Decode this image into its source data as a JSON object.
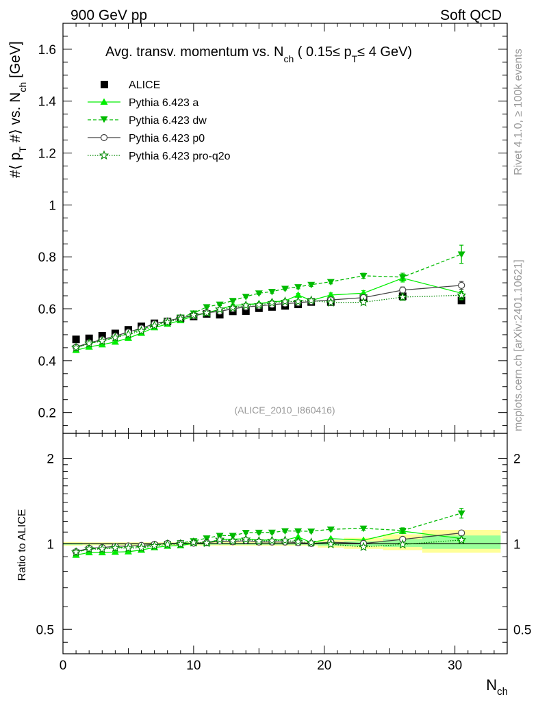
{
  "header": {
    "left": "900 GeV pp",
    "right": "Soft QCD"
  },
  "side_labels": {
    "rivet": "Rivet 4.1.0, ≥ 100k events",
    "mcplots": "mcplots.cern.ch [arXiv:2401.10621]"
  },
  "analysis_id": "(ALICE_2010_I860416)",
  "colors": {
    "alice": "#000000",
    "pythia_a": "#00ee00",
    "pythia_dw": "#00bb00",
    "pythia_p0": "#444444",
    "pythia_proq2o": "#008800",
    "band_yellow": "#ffff99",
    "band_green": "#99ff99"
  },
  "chart_data": [
    {
      "type": "scatter",
      "title": "Avg. transv. momentum vs. N_ch ( 0.15≤ p_T ≤ 4 GeV)",
      "title_parts": {
        "pre": "Avg. transv. momentum vs. N",
        "sub1": "ch",
        "mid": " ( 0.15≤ p",
        "sub2": "T",
        "post": "≤ 4 GeV)"
      },
      "ylabel": "#⟨ p_T #⟩ vs. N_ch [GeV]",
      "ylabel_parts": {
        "a": "#⟨ p",
        "b": "T",
        "c": " #⟩ vs. N",
        "d": "ch",
        "e": " [GeV]"
      },
      "xlim": [
        0,
        34
      ],
      "ylim": [
        0.12,
        1.7
      ],
      "yticks": [
        0.2,
        0.4,
        0.6,
        0.8,
        1,
        1.2,
        1.4,
        1.6
      ],
      "ytick_labels": [
        "0.2",
        "0.4",
        "0.6",
        "0.8",
        "1",
        "1.2",
        "1.4",
        "1.6"
      ],
      "legend": [
        "ALICE",
        "Pythia 6.423 a",
        "Pythia 6.423 dw",
        "Pythia 6.423 p0",
        "Pythia 6.423 pro-q2o"
      ],
      "legend_position": "top-left",
      "series": [
        {
          "name": "ALICE",
          "style": "square",
          "x": [
            1,
            2,
            3,
            4,
            5,
            6,
            7,
            8,
            9,
            10,
            11,
            12,
            13,
            14,
            15,
            16,
            17,
            18,
            19,
            20.5,
            23,
            26,
            30.5
          ],
          "y": [
            0.482,
            0.486,
            0.496,
            0.505,
            0.519,
            0.532,
            0.544,
            0.551,
            0.563,
            0.57,
            0.58,
            0.577,
            0.59,
            0.591,
            0.602,
            0.607,
            0.611,
            0.617,
            0.626,
            0.626,
            0.641,
            0.648,
            0.632
          ]
        },
        {
          "name": "Pythia 6.423 a",
          "style": "solid-triangle-up",
          "x": [
            1,
            2,
            3,
            4,
            5,
            6,
            7,
            8,
            9,
            10,
            11,
            12,
            13,
            14,
            15,
            16,
            17,
            18,
            19,
            20.5,
            23,
            26,
            30.5
          ],
          "y": [
            0.44,
            0.453,
            0.462,
            0.472,
            0.487,
            0.506,
            0.528,
            0.541,
            0.555,
            0.572,
            0.584,
            0.598,
            0.613,
            0.616,
            0.62,
            0.627,
            0.63,
            0.653,
            0.632,
            0.653,
            0.66,
            0.718,
            0.66
          ],
          "err": [
            0.004,
            0.004,
            0.004,
            0.004,
            0.004,
            0.004,
            0.004,
            0.004,
            0.004,
            0.004,
            0.004,
            0.004,
            0.005,
            0.005,
            0.005,
            0.005,
            0.006,
            0.006,
            0.007,
            0.008,
            0.01,
            0.015,
            0.025
          ]
        },
        {
          "name": "Pythia 6.423 dw",
          "style": "dashed-triangle-down",
          "x": [
            1,
            2,
            3,
            4,
            5,
            6,
            7,
            8,
            9,
            10,
            11,
            12,
            13,
            14,
            15,
            16,
            17,
            18,
            19,
            20.5,
            23,
            26,
            30.5
          ],
          "y": [
            0.45,
            0.467,
            0.477,
            0.49,
            0.505,
            0.52,
            0.538,
            0.552,
            0.567,
            0.583,
            0.607,
            0.617,
            0.631,
            0.647,
            0.66,
            0.666,
            0.678,
            0.684,
            0.693,
            0.704,
            0.727,
            0.722,
            0.81
          ],
          "err": [
            0.004,
            0.004,
            0.004,
            0.004,
            0.004,
            0.004,
            0.004,
            0.004,
            0.004,
            0.004,
            0.004,
            0.005,
            0.005,
            0.005,
            0.005,
            0.006,
            0.006,
            0.007,
            0.007,
            0.008,
            0.01,
            0.015,
            0.035
          ]
        },
        {
          "name": "Pythia 6.423 p0",
          "style": "solid-open-circle",
          "x": [
            1,
            2,
            3,
            4,
            5,
            6,
            7,
            8,
            9,
            10,
            11,
            12,
            13,
            14,
            15,
            16,
            17,
            18,
            19,
            20.5,
            23,
            26,
            30.5
          ],
          "y": [
            0.452,
            0.469,
            0.481,
            0.495,
            0.51,
            0.525,
            0.542,
            0.553,
            0.565,
            0.573,
            0.585,
            0.59,
            0.6,
            0.607,
            0.611,
            0.616,
            0.62,
            0.623,
            0.628,
            0.634,
            0.643,
            0.672,
            0.69
          ],
          "err": [
            0.004,
            0.004,
            0.004,
            0.004,
            0.004,
            0.004,
            0.004,
            0.004,
            0.004,
            0.004,
            0.004,
            0.004,
            0.005,
            0.005,
            0.005,
            0.005,
            0.005,
            0.006,
            0.006,
            0.007,
            0.009,
            0.012,
            0.015
          ]
        },
        {
          "name": "Pythia 6.423 pro-q2o",
          "style": "dotted-open-star",
          "x": [
            1,
            2,
            3,
            4,
            5,
            6,
            7,
            8,
            9,
            10,
            11,
            12,
            13,
            14,
            15,
            16,
            17,
            18,
            19,
            20.5,
            23,
            26,
            30.5
          ],
          "y": [
            0.45,
            0.466,
            0.475,
            0.489,
            0.501,
            0.515,
            0.535,
            0.548,
            0.562,
            0.576,
            0.584,
            0.598,
            0.604,
            0.613,
            0.615,
            0.623,
            0.628,
            0.628,
            0.632,
            0.624,
            0.625,
            0.645,
            0.652
          ],
          "err": [
            0.004,
            0.004,
            0.004,
            0.004,
            0.004,
            0.004,
            0.004,
            0.004,
            0.004,
            0.004,
            0.004,
            0.004,
            0.005,
            0.005,
            0.005,
            0.005,
            0.005,
            0.006,
            0.006,
            0.007,
            0.009,
            0.012,
            0.015
          ]
        }
      ]
    },
    {
      "type": "scatter",
      "title": "",
      "ylabel": "Ratio to ALICE",
      "xlabel": "N_ch",
      "xlabel_parts": {
        "main": "N",
        "sub": "ch"
      },
      "xlim": [
        0,
        34
      ],
      "ylim": [
        0.41,
        2.45
      ],
      "yticks": [
        0.5,
        1,
        2
      ],
      "ytick_labels": [
        "0.5",
        "1",
        "2"
      ],
      "xticks": [
        0,
        10,
        20,
        30
      ],
      "xtick_labels": [
        "0",
        "10",
        "20",
        "30"
      ],
      "reference_line": 1,
      "band_bins": [
        {
          "x": [
            0,
            1.5
          ],
          "yellow": [
            0.985,
            1.015
          ],
          "green": [
            0.993,
            1.007
          ]
        },
        {
          "x": [
            1.5,
            10.5
          ],
          "yellow": [
            0.988,
            1.012
          ],
          "green": [
            0.995,
            1.005
          ]
        },
        {
          "x": [
            10.5,
            19.5
          ],
          "yellow": [
            0.985,
            1.015
          ],
          "green": [
            0.993,
            1.007
          ]
        },
        {
          "x": [
            19.5,
            21.5
          ],
          "yellow": [
            0.97,
            1.03
          ],
          "green": [
            0.985,
            1.015
          ]
        },
        {
          "x": [
            21.5,
            24.5
          ],
          "yellow": [
            0.96,
            1.05
          ],
          "green": [
            0.98,
            1.02
          ]
        },
        {
          "x": [
            24.5,
            27.5
          ],
          "yellow": [
            0.95,
            1.08
          ],
          "green": [
            0.975,
            1.04
          ]
        },
        {
          "x": [
            27.5,
            33.5
          ],
          "yellow": [
            0.93,
            1.12
          ],
          "green": [
            0.96,
            1.07
          ]
        }
      ],
      "series": [
        {
          "name": "Pythia 6.423 a",
          "style": "solid-triangle-up",
          "x": [
            1,
            2,
            3,
            4,
            5,
            6,
            7,
            8,
            9,
            10,
            11,
            12,
            13,
            14,
            15,
            16,
            17,
            18,
            19,
            20.5,
            23,
            26,
            30.5
          ],
          "y": [
            0.913,
            0.932,
            0.932,
            0.935,
            0.938,
            0.951,
            0.971,
            0.982,
            0.986,
            1.004,
            1.007,
            1.036,
            1.039,
            1.042,
            1.03,
            1.033,
            1.031,
            1.058,
            1.01,
            1.043,
            1.03,
            1.108,
            1.044
          ]
        },
        {
          "name": "Pythia 6.423 dw",
          "style": "dashed-triangle-down",
          "x": [
            1,
            2,
            3,
            4,
            5,
            6,
            7,
            8,
            9,
            10,
            11,
            12,
            13,
            14,
            15,
            16,
            17,
            18,
            19,
            20.5,
            23,
            26,
            30.5
          ],
          "y": [
            0.934,
            0.961,
            0.962,
            0.97,
            0.973,
            0.977,
            0.989,
            1.002,
            1.007,
            1.023,
            1.047,
            1.069,
            1.069,
            1.095,
            1.096,
            1.097,
            1.11,
            1.109,
            1.107,
            1.125,
            1.134,
            1.114,
            1.282
          ],
          "err": [
            0.01,
            0.01,
            0.01,
            0.01,
            0.01,
            0.01,
            0.01,
            0.01,
            0.01,
            0.01,
            0.01,
            0.01,
            0.01,
            0.01,
            0.012,
            0.012,
            0.013,
            0.013,
            0.014,
            0.015,
            0.018,
            0.025,
            0.05
          ]
        },
        {
          "name": "Pythia 6.423 p0",
          "style": "solid-open-circle",
          "x": [
            1,
            2,
            3,
            4,
            5,
            6,
            7,
            8,
            9,
            10,
            11,
            12,
            13,
            14,
            15,
            16,
            17,
            18,
            19,
            20.5,
            23,
            26,
            30.5
          ],
          "y": [
            0.938,
            0.965,
            0.97,
            0.98,
            0.983,
            0.987,
            0.996,
            1.004,
            1.004,
            1.005,
            1.009,
            1.023,
            1.017,
            1.027,
            1.015,
            1.015,
            1.015,
            1.01,
            1.003,
            1.013,
            1.003,
            1.037,
            1.092
          ]
        },
        {
          "name": "Pythia 6.423 pro-q2o",
          "style": "dotted-open-star",
          "x": [
            1,
            2,
            3,
            4,
            5,
            6,
            7,
            8,
            9,
            10,
            11,
            12,
            13,
            14,
            15,
            16,
            17,
            18,
            19,
            20.5,
            23,
            26,
            30.5
          ],
          "y": [
            0.934,
            0.959,
            0.958,
            0.968,
            0.965,
            0.968,
            0.983,
            0.995,
            0.998,
            1.011,
            1.007,
            1.036,
            1.024,
            1.037,
            1.022,
            1.026,
            1.028,
            1.018,
            1.01,
            0.997,
            0.975,
            0.995,
            1.032
          ]
        }
      ]
    }
  ]
}
